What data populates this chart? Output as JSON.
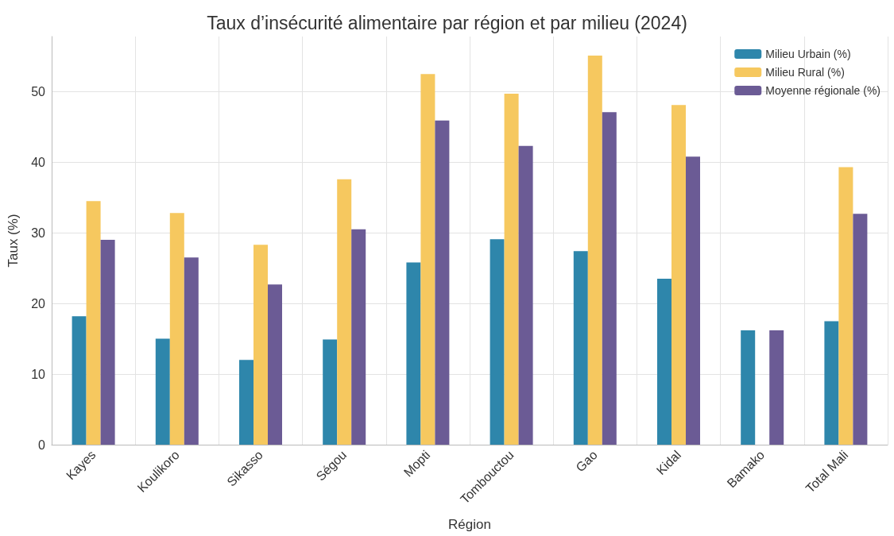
{
  "chart_data": {
    "type": "bar",
    "title": "Taux d’insécurité alimentaire par région et par milieu (2024)",
    "xlabel": "Région",
    "ylabel": "Taux (%)",
    "categories": [
      "Kayes",
      "Koulikoro",
      "Sikasso",
      "Ségou",
      "Mopti",
      "Tombouctou",
      "Gao",
      "Kidal",
      "Bamako",
      "Total Mali"
    ],
    "series": [
      {
        "name": "Milieu Urbain (%)",
        "color": "#2e86ab",
        "values": [
          18.2,
          15.0,
          12.0,
          14.9,
          25.8,
          29.1,
          27.4,
          23.5,
          16.2,
          17.5
        ]
      },
      {
        "name": "Milieu Rural (%)",
        "color": "#f6c85f",
        "values": [
          34.5,
          32.8,
          28.3,
          37.6,
          52.5,
          49.7,
          55.1,
          48.1,
          null,
          39.3
        ]
      },
      {
        "name": "Moyenne régionale (%)",
        "color": "#6b5b95",
        "values": [
          29.0,
          26.5,
          22.7,
          30.5,
          45.9,
          42.3,
          47.1,
          40.8,
          16.2,
          32.7
        ]
      }
    ],
    "ylim": [
      0,
      57.8
    ],
    "yticks": [
      0,
      10,
      20,
      30,
      40,
      50
    ],
    "grid": true,
    "legend": "top right"
  }
}
